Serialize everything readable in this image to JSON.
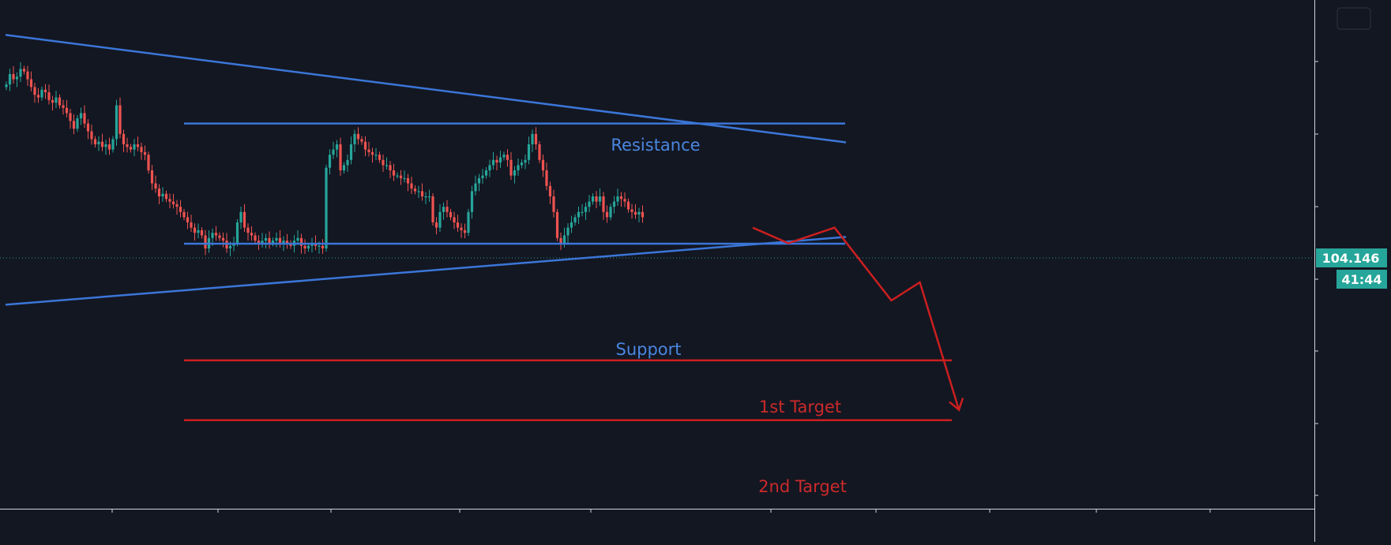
{
  "chart_data": {
    "type": "candlestick",
    "grid": false,
    "last_price_label": "104.146",
    "countdown_label": "41:44",
    "colors": {
      "background": "#131722",
      "bull": "#26a69a",
      "bear": "#ef5350",
      "trendline": "#3b76d8",
      "target": "#cc1f1f",
      "annotation_blue": "#4a86e0",
      "annotation_red": "#cc2a2a",
      "badge": "#26a69a",
      "axis": "#d1d4dc"
    },
    "annotations": {
      "resistance": "Resistance",
      "support": "Support",
      "target_1": "1st Target",
      "target_2": "2nd Target"
    },
    "candles_close": [
      93,
      97,
      95,
      96,
      99,
      98,
      95,
      92,
      89,
      88,
      91,
      90,
      87,
      86,
      88,
      85,
      84,
      82,
      79,
      76,
      80,
      82,
      78,
      75,
      72,
      70,
      71,
      69,
      70,
      68,
      72,
      85,
      74,
      70,
      69,
      68,
      70,
      69,
      67,
      66,
      60,
      55,
      53,
      50,
      51,
      49,
      48,
      47,
      46,
      44,
      42,
      40,
      38,
      36,
      37,
      35,
      30,
      34,
      36,
      35,
      34,
      33,
      30,
      31,
      32,
      40,
      44,
      38,
      36,
      35,
      33,
      32,
      33,
      34,
      32,
      33,
      34,
      32,
      33,
      32,
      31,
      33,
      34,
      31,
      30,
      31,
      32,
      31,
      31,
      30,
      61,
      66,
      68,
      70,
      60,
      62,
      64,
      70,
      74,
      72,
      71,
      68,
      67,
      66,
      66,
      64,
      62,
      62,
      60,
      58,
      58,
      57,
      57,
      55,
      53,
      52,
      52,
      50,
      50,
      50,
      40,
      38,
      44,
      46,
      44,
      42,
      40,
      38,
      37,
      36,
      44,
      52,
      55,
      57,
      58,
      60,
      62,
      64,
      63,
      65,
      66,
      64,
      58,
      60,
      62,
      63,
      64,
      70,
      74,
      70,
      64,
      60,
      54,
      50,
      44,
      34,
      32,
      35,
      38,
      40,
      42,
      44,
      44,
      46,
      48,
      50,
      48,
      50,
      44,
      42,
      46,
      48,
      50,
      49,
      48,
      45,
      44,
      43,
      44,
      42
    ],
    "trendlines": [
      {
        "name": "Descending resistance",
        "from": [
          0,
          112.0
        ],
        "to": [
          236,
          70.8
        ]
      },
      {
        "name": "Rising support",
        "from": [
          0,
          8.4
        ],
        "to": [
          236,
          34.4
        ]
      }
    ],
    "horizontal_lines": [
      {
        "name": "Resistance",
        "value": 78.0,
        "from": 50,
        "to": 236
      },
      {
        "name": "Support",
        "value": 31.8,
        "from": 50,
        "to": 236
      },
      {
        "name": "1st Target",
        "value": -13.0,
        "from": 50,
        "to": 266
      },
      {
        "name": "2nd Target",
        "value": -36.0,
        "from": 50,
        "to": 266
      }
    ],
    "projection_path": [
      [
        210,
        38.0
      ],
      [
        220,
        32.0
      ],
      [
        233,
        38.0
      ],
      [
        249,
        10.0
      ],
      [
        257,
        17.0
      ],
      [
        268,
        -32.0
      ]
    ]
  }
}
